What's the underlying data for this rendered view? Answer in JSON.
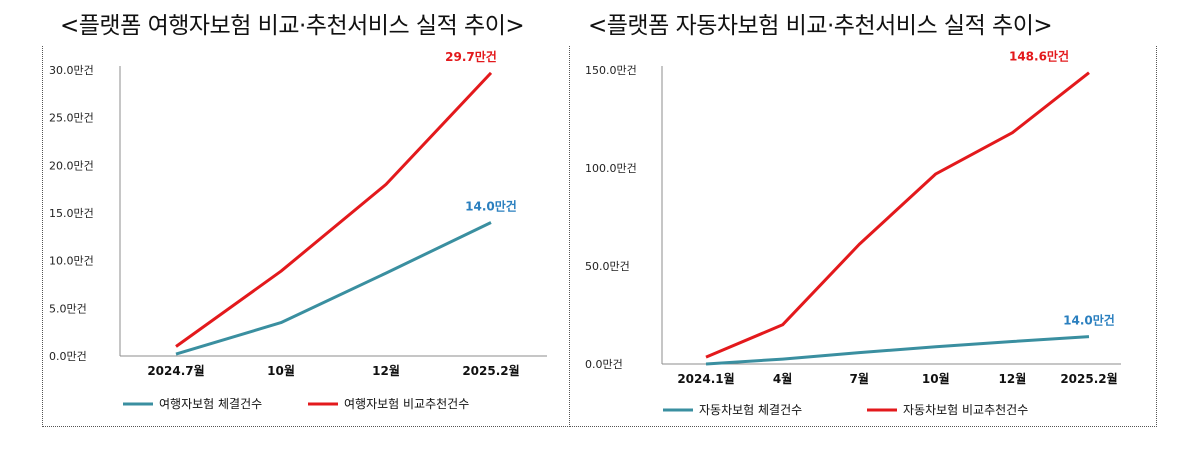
{
  "titles": {
    "left": "<플랫폼 여행자보험 비교·추천서비스 실적 추이>",
    "right": "<플랫폼 자동차보험 비교·추천서비스 실적 추이>"
  },
  "colors": {
    "teal": "#3a8fa0",
    "red": "#e3191c",
    "blue_label": "#2a7fbf",
    "axis": "#8c8c8c"
  },
  "chart_data": [
    {
      "type": "line",
      "categories": [
        "2024.7월",
        "10월",
        "12월",
        "2025.2월"
      ],
      "yticks": [
        "0.0만건",
        "5.0만건",
        "10.0만건",
        "15.0만건",
        "20.0만건",
        "25.0만건",
        "30.0만건"
      ],
      "ylim": [
        0,
        30
      ],
      "series": [
        {
          "name": "여행자보험 체결건수",
          "color": "teal",
          "values": [
            0.2,
            3.5,
            8.7,
            14.0
          ],
          "end_label": "14.0만건"
        },
        {
          "name": "여행자보험 비교추천건수",
          "color": "red",
          "values": [
            1.0,
            8.9,
            18.0,
            29.7
          ],
          "end_label": "29.7만건"
        }
      ]
    },
    {
      "type": "line",
      "categories": [
        "2024.1월",
        "4월",
        "7월",
        "10월",
        "12월",
        "2025.2월"
      ],
      "yticks": [
        "0.0만건",
        "50.0만건",
        "100.0만건",
        "150.0만건"
      ],
      "ylim": [
        0,
        150
      ],
      "series": [
        {
          "name": "자동차보험 체결건수",
          "color": "teal",
          "values": [
            0.0,
            2.5,
            5.8,
            8.8,
            11.5,
            14.0
          ],
          "end_label": "14.0만건"
        },
        {
          "name": "자동차보험 비교추천건수",
          "color": "red",
          "values": [
            3.5,
            20.0,
            61.0,
            97.0,
            118.0,
            148.6
          ],
          "end_label": "148.6만건"
        }
      ]
    }
  ]
}
